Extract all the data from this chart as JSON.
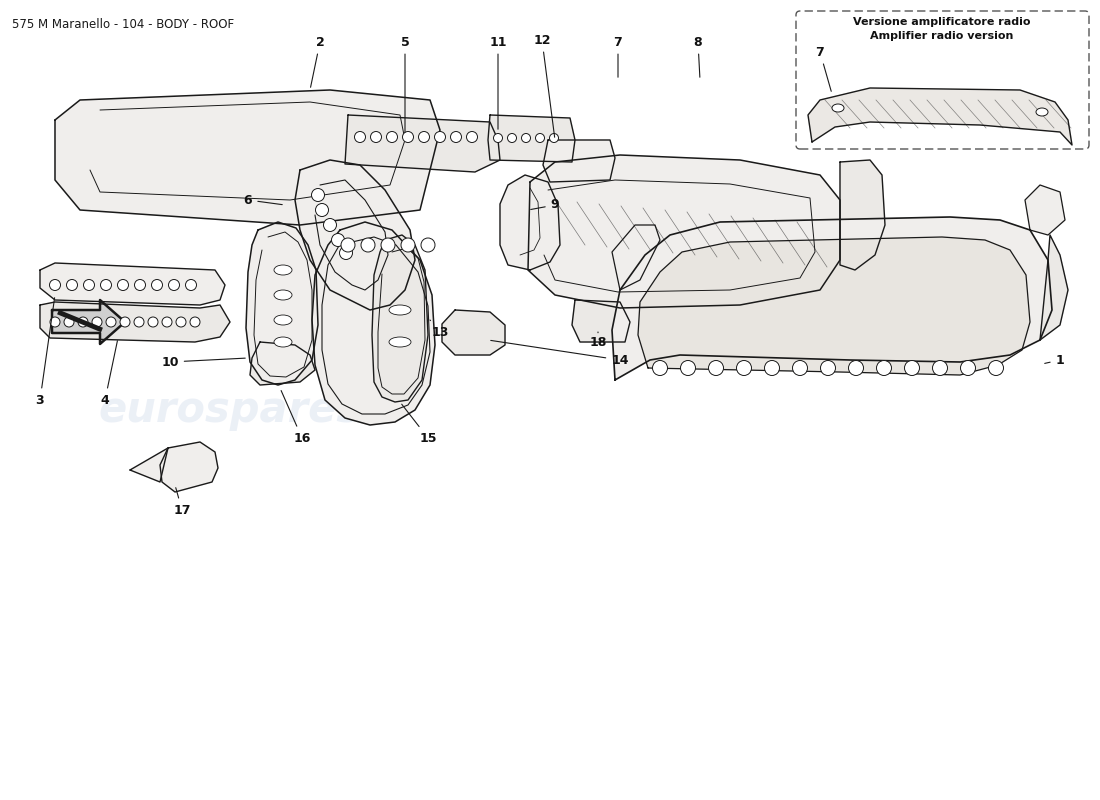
{
  "title": "575 M Maranello - 104 - BODY - ROOF",
  "title_fontsize": 8.5,
  "title_color": "#1a1a1a",
  "bg_color": "#ffffff",
  "line_color": "#1a1a1a",
  "label_color": "#111111",
  "watermark_text1": "eurospares",
  "watermark_text2": "eurospares",
  "watermark_color": "#c8d4e8",
  "watermark_alpha": 0.35,
  "callout_title_line1": "Versione amplificatore radio",
  "callout_title_line2": "Amplifier radio version",
  "fill_color": "#f0eeec",
  "fill_color2": "#ebe9e6"
}
